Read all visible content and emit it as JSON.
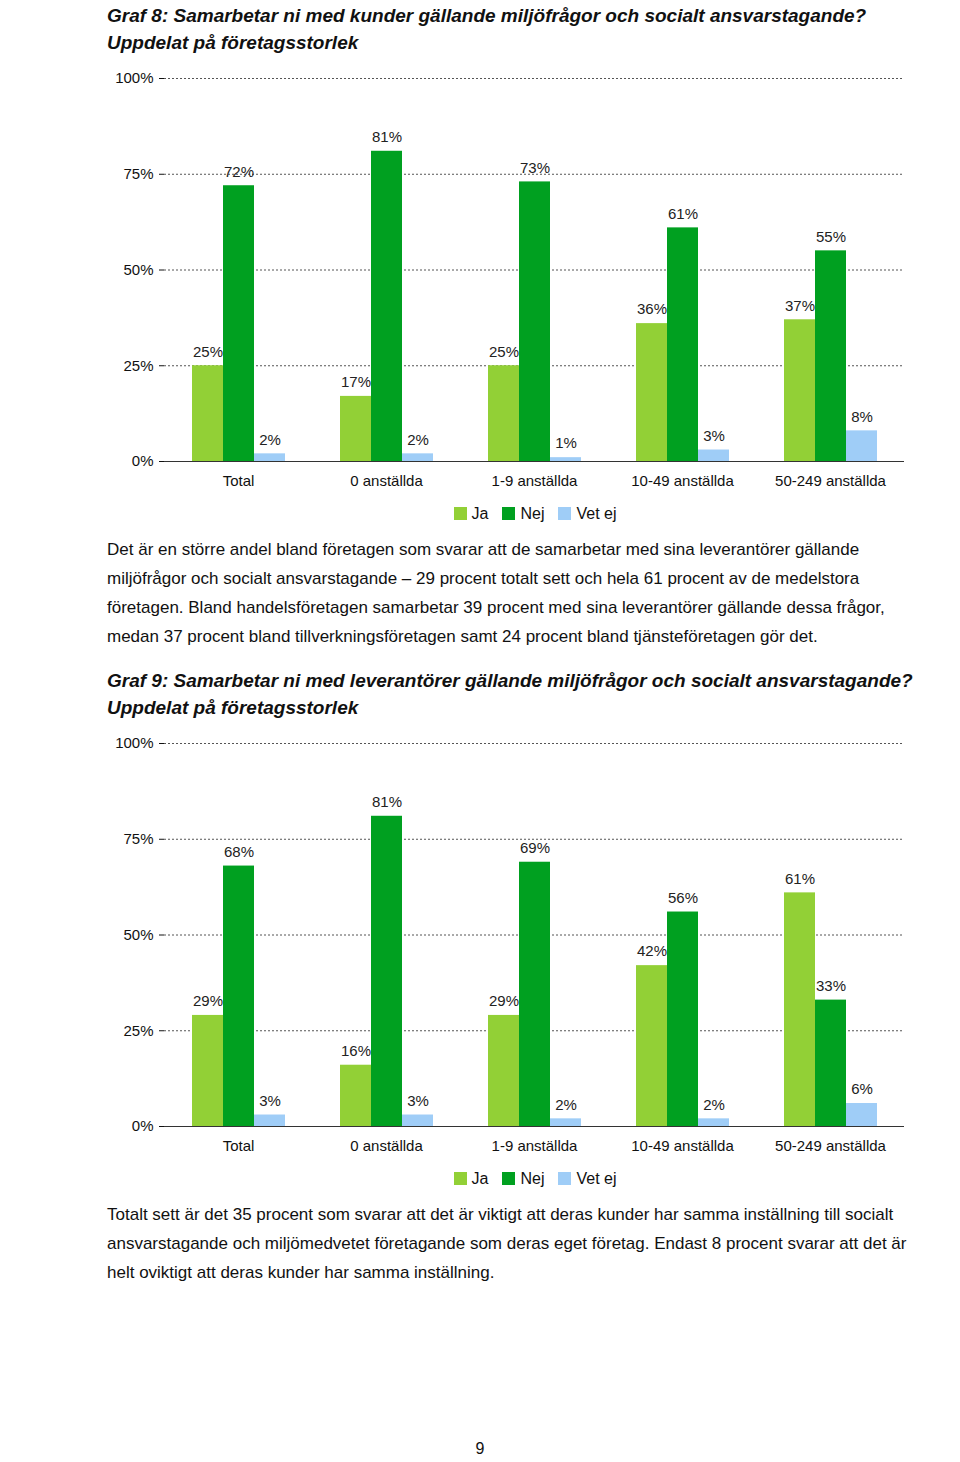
{
  "chart_data": [
    {
      "type": "bar",
      "title": "Graf 8: Samarbetar ni med kunder gällande miljöfrågor och socialt ansvarstagande? Uppdelat på företagsstorlek",
      "categories": [
        "Total",
        "0 anställda",
        "1-9 anställda",
        "10-49 anställda",
        "50-249 anställda"
      ],
      "series": [
        {
          "name": "Ja",
          "color": "#92d036",
          "values": [
            25,
            17,
            25,
            36,
            37
          ],
          "value_labels": [
            "25%",
            "17%",
            "25%",
            "36%",
            "37%"
          ]
        },
        {
          "name": "Nej",
          "color": "#00a020",
          "values": [
            72,
            81,
            73,
            61,
            55
          ],
          "value_labels": [
            "72%",
            "81%",
            "73%",
            "61%",
            "55%"
          ]
        },
        {
          "name": "Vet ej",
          "color": "#9fcdf7",
          "values": [
            2,
            2,
            1,
            3,
            8
          ],
          "value_labels": [
            "2%",
            "2%",
            "1%",
            "3%",
            "8%"
          ]
        }
      ],
      "ylim": [
        0,
        100
      ],
      "yticks": [
        {
          "value": 0,
          "label": "0%"
        },
        {
          "value": 25,
          "label": "25%"
        },
        {
          "value": 50,
          "label": "50%"
        },
        {
          "value": 75,
          "label": "75%"
        },
        {
          "value": 100,
          "label": "100%"
        }
      ],
      "grid": true,
      "data_labels": true,
      "legend": "bottom"
    },
    {
      "type": "bar",
      "title": "Graf 9: Samarbetar ni med leverantörer gällande miljöfrågor och socialt ansvarstagande? Uppdelat på företagsstorlek",
      "categories": [
        "Total",
        "0 anställda",
        "1-9 anställda",
        "10-49 anställda",
        "50-249 anställda"
      ],
      "series": [
        {
          "name": "Ja",
          "color": "#92d036",
          "values": [
            29,
            16,
            29,
            42,
            61
          ],
          "value_labels": [
            "29%",
            "16%",
            "29%",
            "42%",
            "61%"
          ]
        },
        {
          "name": "Nej",
          "color": "#00a020",
          "values": [
            68,
            81,
            69,
            56,
            33
          ],
          "value_labels": [
            "68%",
            "81%",
            "69%",
            "56%",
            "33%"
          ]
        },
        {
          "name": "Vet ej",
          "color": "#9fcdf7",
          "values": [
            3,
            3,
            2,
            2,
            6
          ],
          "value_labels": [
            "3%",
            "3%",
            "2%",
            "2%",
            "6%"
          ]
        }
      ],
      "ylim": [
        0,
        100
      ],
      "yticks": [
        {
          "value": 0,
          "label": "0%"
        },
        {
          "value": 25,
          "label": "25%"
        },
        {
          "value": 50,
          "label": "50%"
        },
        {
          "value": 75,
          "label": "75%"
        },
        {
          "value": 100,
          "label": "100%"
        }
      ],
      "grid": true,
      "data_labels": true,
      "legend": "bottom"
    }
  ],
  "paragraphs": [
    "Det är en större andel bland företagen som svarar att de samarbetar med sina leverantörer gällande miljöfrågor och socialt ansvarstagande – 29 procent totalt sett och hela 61 procent av de medelstora företagen. Bland handelsföretagen samarbetar 39 procent med sina leverantörer gällande dessa frågor, medan 37 procent bland tillverkningsföretagen samt 24 procent bland tjänsteföretagen gör det.",
    "Totalt sett är det 35 procent som svarar att det är viktigt att deras kunder har samma inställning till socialt ansvarstagande och miljömedvetet företagande som deras eget företag. Endast 8 procent svarar att det är helt oviktigt att deras kunder har samma inställning."
  ],
  "page_number": "9"
}
